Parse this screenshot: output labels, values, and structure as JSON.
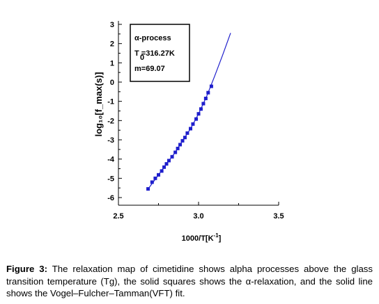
{
  "chart_data": {
    "type": "scatter",
    "xlabel_base": "1000/T[K",
    "xlabel_sup": "-1",
    "xlabel_tail": "]",
    "ylabel": "log₁₀[f_max(s)]",
    "xlim": [
      2.5,
      3.5
    ],
    "ylim": [
      -6,
      3
    ],
    "xticks": [
      "2.5",
      "3.0",
      "3.5"
    ],
    "yticks": [
      "3",
      "2",
      "1",
      "0",
      "-1",
      "-2",
      "-3",
      "-4",
      "-5",
      "-6"
    ],
    "legend": {
      "line1": "α-process",
      "line2": "T =316.27K",
      "line2_sub": "0",
      "line3": "m=69.07"
    },
    "series": [
      {
        "kind": "markers",
        "marker": "square",
        "color": "#1f1fcc",
        "x": [
          2.685,
          2.71,
          2.73,
          2.75,
          2.77,
          2.785,
          2.8,
          2.815,
          2.835,
          2.855,
          2.87,
          2.885,
          2.9,
          2.915,
          2.93,
          2.95,
          2.965,
          2.985,
          3.0,
          3.015,
          3.03,
          3.045,
          3.06,
          3.08
        ],
        "y": [
          -5.55,
          -5.2,
          -5.0,
          -4.82,
          -4.62,
          -4.42,
          -4.25,
          -4.08,
          -3.88,
          -3.65,
          -3.45,
          -3.25,
          -3.05,
          -2.88,
          -2.65,
          -2.42,
          -2.18,
          -1.92,
          -1.65,
          -1.4,
          -1.12,
          -0.85,
          -0.55,
          -0.22
        ]
      },
      {
        "kind": "line",
        "color": "#1f1fcc",
        "x": [
          2.685,
          2.75,
          2.8,
          2.85,
          2.9,
          2.95,
          3.0,
          3.05,
          3.1,
          3.15,
          3.2
        ],
        "y": [
          -5.55,
          -4.82,
          -4.25,
          -3.7,
          -3.05,
          -2.42,
          -1.65,
          -0.75,
          0.3,
          1.4,
          2.55
        ]
      }
    ]
  },
  "caption": {
    "label": "Figure 3:",
    "text": " The relaxation map of cimetidine shows alpha processes above the glass transition temperature (Tg), the solid squares shows the α-relaxation, and the solid line shows the Vogel–Fulcher–Tamman(VFT) fit."
  }
}
